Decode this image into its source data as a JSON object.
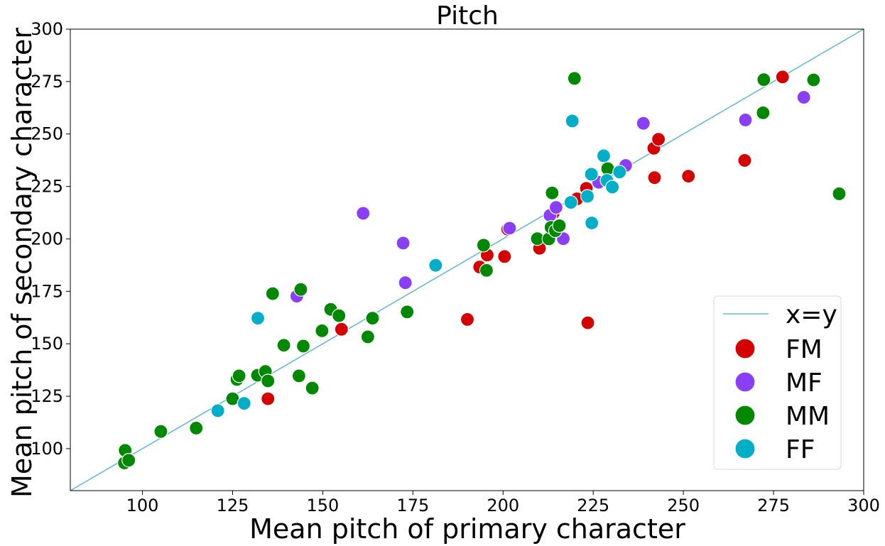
{
  "chart_data": {
    "type": "scatter",
    "title": "Pitch",
    "xlabel": "Mean pitch of primary character",
    "ylabel": "Mean pitch of secondary character",
    "xlim": [
      80,
      300
    ],
    "ylim": [
      80,
      300
    ],
    "xticks": [
      100,
      125,
      150,
      175,
      200,
      225,
      250,
      275,
      300
    ],
    "yticks": [
      100,
      125,
      150,
      175,
      200,
      225,
      250,
      275,
      300
    ],
    "grid": false,
    "legend_position": "bottom-right",
    "reference_line": {
      "label": "x=y",
      "color": "#6bb8d2"
    },
    "series": [
      {
        "name": "FM",
        "color": "#d40000",
        "points": [
          [
            134.8,
            123.8
          ],
          [
            155.2,
            156.9
          ],
          [
            190.1,
            161.6
          ],
          [
            193.5,
            186.6
          ],
          [
            195.6,
            192.3
          ],
          [
            200.4,
            191.6
          ],
          [
            201.3,
            204.6
          ],
          [
            210.1,
            195.5
          ],
          [
            213.9,
            212.3
          ],
          [
            220.5,
            219.1
          ],
          [
            223.1,
            224.1
          ],
          [
            223.5,
            160.0
          ],
          [
            242.0,
            229.2
          ],
          [
            241.8,
            243.2
          ],
          [
            243.1,
            247.5
          ],
          [
            251.4,
            229.9
          ],
          [
            267.0,
            237.4
          ],
          [
            277.5,
            277.2
          ]
        ]
      },
      {
        "name": "MF",
        "color": "#8a3ff5",
        "points": [
          [
            142.8,
            172.7
          ],
          [
            161.2,
            212.2
          ],
          [
            172.3,
            198.0
          ],
          [
            172.9,
            179.1
          ],
          [
            201.8,
            205.1
          ],
          [
            213.0,
            211.2
          ],
          [
            214.7,
            215.0
          ],
          [
            216.7,
            200.1
          ],
          [
            226.5,
            227.0
          ],
          [
            234.0,
            235.0
          ],
          [
            238.9,
            255.1
          ],
          [
            267.2,
            256.7
          ],
          [
            283.4,
            267.5
          ]
        ]
      },
      {
        "name": "MM",
        "color": "#008800",
        "points": [
          [
            95.0,
            93.2
          ],
          [
            95.2,
            99.2
          ],
          [
            96.2,
            94.5
          ],
          [
            105.1,
            108.2
          ],
          [
            114.9,
            109.8
          ],
          [
            125.0,
            123.8
          ],
          [
            126.2,
            133.0
          ],
          [
            126.8,
            134.7
          ],
          [
            131.9,
            135.0
          ],
          [
            134.1,
            136.8
          ],
          [
            134.8,
            132.3
          ],
          [
            136.1,
            173.9
          ],
          [
            139.2,
            149.3
          ],
          [
            143.4,
            134.7
          ],
          [
            143.9,
            175.9
          ],
          [
            144.6,
            148.9
          ],
          [
            147.1,
            128.9
          ],
          [
            149.8,
            156.2
          ],
          [
            152.2,
            166.4
          ],
          [
            154.5,
            163.4
          ],
          [
            162.5,
            153.3
          ],
          [
            163.8,
            162.2
          ],
          [
            173.4,
            165.2
          ],
          [
            194.6,
            197.0
          ],
          [
            195.4,
            185.0
          ],
          [
            209.5,
            200.1
          ],
          [
            212.7,
            200.0
          ],
          [
            213.3,
            205.5
          ],
          [
            213.6,
            221.9
          ],
          [
            214.5,
            203.9
          ],
          [
            215.6,
            206.3
          ],
          [
            219.8,
            276.5
          ],
          [
            229.0,
            233.5
          ],
          [
            272.1,
            260.1
          ],
          [
            272.3,
            275.9
          ],
          [
            286.1,
            275.8
          ],
          [
            293.2,
            221.5
          ]
        ]
      },
      {
        "name": "FF",
        "color": "#00aec8",
        "points": [
          [
            120.9,
            118.1
          ],
          [
            128.2,
            121.6
          ],
          [
            132.0,
            162.2
          ],
          [
            181.3,
            187.4
          ],
          [
            218.8,
            217.4
          ],
          [
            219.2,
            256.2
          ],
          [
            223.4,
            220.3
          ],
          [
            224.5,
            230.8
          ],
          [
            224.6,
            207.6
          ],
          [
            227.9,
            239.6
          ],
          [
            228.8,
            227.9
          ],
          [
            230.3,
            224.7
          ],
          [
            232.3,
            231.9
          ]
        ]
      }
    ]
  }
}
